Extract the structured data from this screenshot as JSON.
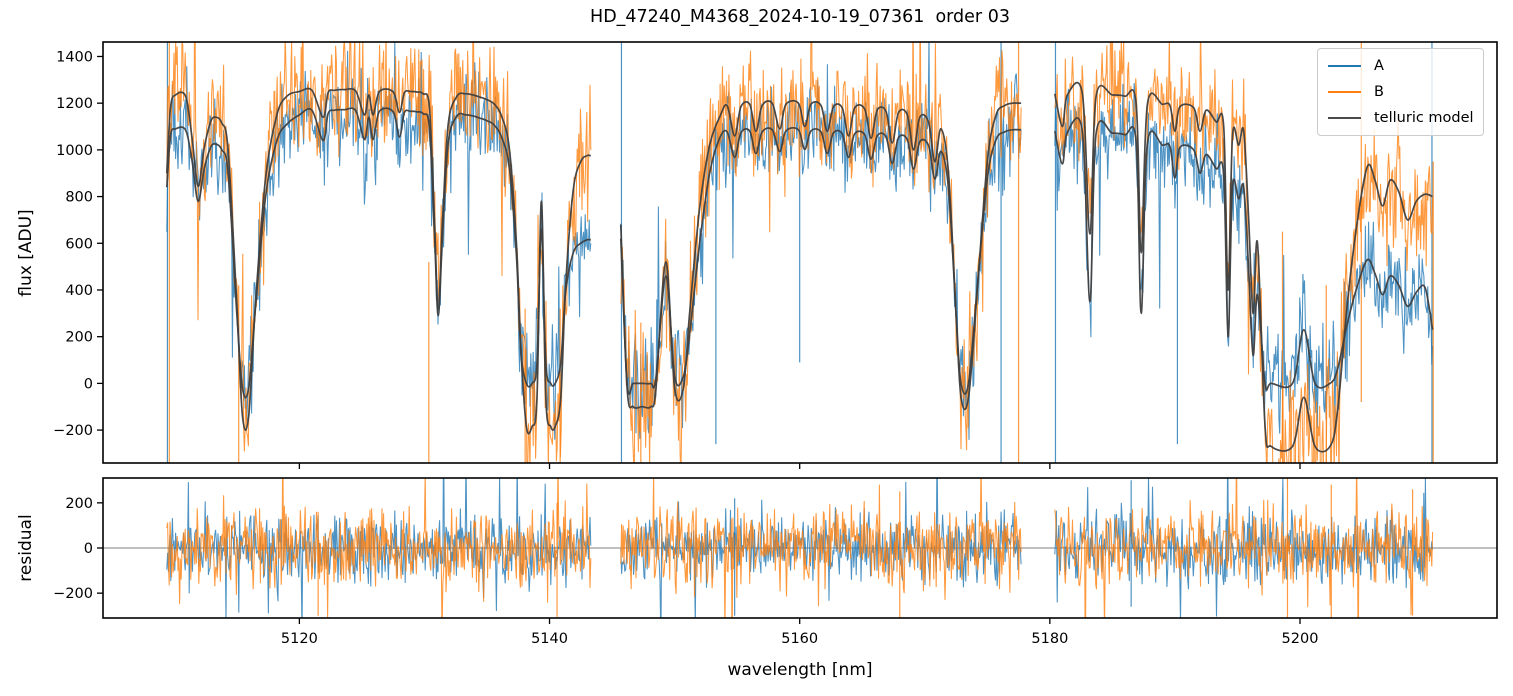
{
  "chart_data": {
    "type": "line",
    "title": "HD_47240_M4368_2024-10-19_07361  order 03",
    "xlabel": "wavelength [nm]",
    "xlim": [
      5104.3,
      5215.75
    ],
    "xticks": [
      5120,
      5140,
      5160,
      5180,
      5200
    ],
    "panels": [
      {
        "name": "flux",
        "ylabel": "flux [ADU]",
        "ylim": [
          -341,
          1462
        ],
        "yticks": [
          -200,
          0,
          200,
          400,
          600,
          800,
          1000,
          1200,
          1400
        ]
      },
      {
        "name": "residual",
        "ylabel": "residual",
        "ylim": [
          -310,
          310
        ],
        "yticks": [
          -200,
          0,
          200
        ],
        "zero_line": true
      }
    ],
    "legend": [
      {
        "label": "A",
        "color": "#1f77b4"
      },
      {
        "label": "B",
        "color": "#ff7f0e"
      },
      {
        "label": "telluric model",
        "color": "#4a4a4a"
      }
    ],
    "colors": {
      "A": "#1f77b4",
      "B": "#ff7f0e",
      "telluric": "#3f3f3f",
      "spine": "#000000",
      "zero_line": "#7f7f7f",
      "background": "#ffffff"
    },
    "wavelength_gaps": [
      [
        5143.3,
        5145.7
      ],
      [
        5177.7,
        5180.4
      ]
    ],
    "segments": [
      {
        "lambda": [
          5109.4,
          5109.7,
          5110.1,
          5110.9,
          5111.4,
          5111.9,
          5112.4,
          5112.9,
          5113.3,
          5113.8,
          5114.3,
          5115.0,
          5115.45,
          5115.95,
          5116.5,
          5117.3,
          5118.2,
          5119.0,
          5120.0,
          5121.0,
          5121.9,
          5122.3,
          5122.8,
          5123.6,
          5124.5,
          5125.2,
          5125.55,
          5125.9,
          5126.4,
          5127.5,
          5128.0,
          5128.4,
          5128.9,
          5129.4,
          5129.9,
          5130.4,
          5130.8,
          5131.1,
          5131.45,
          5131.9,
          5132.6,
          5133.3,
          5133.9,
          5134.5,
          5135.0,
          5135.6,
          5136.2,
          5136.8,
          5137.35,
          5137.7,
          5138.15,
          5138.6,
          5139.0,
          5139.35,
          5139.7,
          5140.1,
          5140.45,
          5140.9,
          5141.3,
          5141.9,
          5142.5,
          5143.0,
          5143.3
        ],
        "model_B": [
          900,
          1180,
          1235,
          1230,
          1060,
          845,
          1010,
          1120,
          1140,
          1115,
          1000,
          340,
          -140,
          -140,
          350,
          880,
          1150,
          1230,
          1250,
          1255,
          1140,
          1245,
          1255,
          1258,
          1252,
          1150,
          1235,
          1150,
          1250,
          1248,
          1160,
          1245,
          1250,
          1248,
          1240,
          1180,
          700,
          320,
          700,
          1110,
          1230,
          1240,
          1235,
          1225,
          1215,
          1195,
          1140,
          1000,
          600,
          160,
          -185,
          -185,
          -60,
          780,
          -60,
          -185,
          -185,
          -60,
          430,
          830,
          950,
          975,
          975
        ],
        "model_A": [
          840,
          1060,
          1090,
          1085,
          960,
          780,
          920,
          1010,
          1025,
          1000,
          900,
          300,
          -20,
          -20,
          330,
          800,
          1040,
          1110,
          1150,
          1170,
          1040,
          1155,
          1170,
          1172,
          1168,
          1045,
          1140,
          1045,
          1165,
          1163,
          1055,
          1160,
          1165,
          1163,
          1155,
          1095,
          640,
          290,
          640,
          1030,
          1145,
          1150,
          1145,
          1135,
          1125,
          1105,
          1050,
          920,
          550,
          140,
          0,
          0,
          90,
          660,
          90,
          0,
          0,
          90,
          400,
          560,
          600,
          615,
          615
        ]
      },
      {
        "lambda": [
          5145.7,
          5146.2,
          5146.7,
          5147.4,
          5148.1,
          5148.5,
          5149.3,
          5150.0,
          5150.7,
          5151.2,
          5152.0,
          5152.8,
          5153.6,
          5154.2,
          5154.8,
          5155.3,
          5156.0,
          5156.5,
          5157.0,
          5157.8,
          5158.4,
          5158.9,
          5159.9,
          5160.4,
          5160.9,
          5161.7,
          5162.2,
          5162.7,
          5163.4,
          5163.9,
          5164.4,
          5165.2,
          5165.7,
          5166.2,
          5166.9,
          5167.4,
          5167.9,
          5168.6,
          5169.1,
          5169.6,
          5170.3,
          5170.8,
          5171.3,
          5171.9,
          5172.5,
          5172.9,
          5173.5,
          5174.2,
          5175.0,
          5175.7,
          5176.4,
          5177.0,
          5177.7
        ],
        "model_B": [
          680,
          -20,
          -100,
          -100,
          -100,
          -30,
          520,
          -20,
          -20,
          300,
          750,
          1020,
          1140,
          1190,
          1060,
          1185,
          1195,
          1080,
          1190,
          1200,
          1090,
          1195,
          1200,
          1100,
          1195,
          1190,
          1080,
          1185,
          1180,
          1060,
          1180,
          1175,
          1050,
          1170,
          1165,
          1030,
          1160,
          1150,
          1000,
          1140,
          1120,
          950,
          1090,
          900,
          300,
          -60,
          -60,
          400,
          950,
          1150,
          1190,
          1200,
          1200
        ],
        "model_A": [
          620,
          0,
          0,
          0,
          0,
          20,
          460,
          30,
          30,
          210,
          600,
          900,
          1050,
          1077,
          968,
          1073,
          1081,
          985,
          1077,
          1086,
          993,
          1081,
          1086,
          1002,
          1081,
          1077,
          985,
          1073,
          1069,
          968,
          1069,
          1065,
          960,
          1060,
          1056,
          943,
          1052,
          1044,
          918,
          1035,
          1019,
          876,
          993,
          834,
          300,
          0,
          0,
          415,
          876,
          1044,
          1077,
          1086,
          1086
        ]
      },
      {
        "lambda": [
          5180.4,
          5181.0,
          5181.4,
          5182.6,
          5183.2,
          5183.7,
          5185.0,
          5186.0,
          5186.9,
          5187.3,
          5187.8,
          5189.0,
          5189.6,
          5190.0,
          5190.4,
          5191.5,
          5192.0,
          5192.5,
          5193.3,
          5193.9,
          5194.25,
          5194.6,
          5195.1,
          5195.5,
          5195.9,
          5196.25,
          5196.6,
          5197.2,
          5197.7,
          5199.4,
          5200.3,
          5201.2,
          5202.4,
          5203.0,
          5203.8,
          5204.6,
          5205.4,
          5206.0,
          5206.6,
          5207.2,
          5207.9,
          5208.6,
          5209.3,
          5210.0,
          5210.6
        ],
        "model_B": [
          1240,
          1100,
          1235,
          1240,
          640,
          1230,
          1235,
          1230,
          1200,
          560,
          1195,
          1195,
          1190,
          1080,
          1185,
          1180,
          1080,
          1170,
          1120,
          1100,
          400,
          1060,
          1020,
          1080,
          700,
          300,
          600,
          -180,
          -270,
          -270,
          -60,
          -270,
          -270,
          -120,
          350,
          700,
          930,
          870,
          760,
          870,
          820,
          700,
          780,
          810,
          800
        ],
        "model_A": [
          1080,
          940,
          1075,
          1078,
          350,
          1070,
          1072,
          1065,
          1035,
          300,
          1028,
          1020,
          1015,
          880,
          1010,
          1000,
          900,
          980,
          920,
          890,
          200,
          840,
          790,
          840,
          480,
          120,
          380,
          0,
          0,
          0,
          230,
          0,
          0,
          60,
          260,
          420,
          530,
          470,
          380,
          460,
          420,
          330,
          390,
          410,
          230
        ]
      }
    ],
    "noise": {
      "flux_amp_A": 95,
      "flux_amp_B": 120,
      "residual_amp_A": 75,
      "residual_amp_B": 85
    },
    "spikes_flux": [
      [
        5109.45,
        "A",
        -341,
        1462
      ],
      [
        5109.6,
        "B",
        -341,
        1462
      ],
      [
        5115.15,
        "B",
        -341,
        420
      ],
      [
        5130.35,
        "B",
        -341,
        520
      ],
      [
        5138.05,
        "B",
        -341,
        320
      ],
      [
        5140.85,
        "B",
        -341,
        320
      ],
      [
        5145.75,
        "A",
        -341,
        1462
      ],
      [
        5147.3,
        "B",
        -341,
        260
      ],
      [
        5153.3,
        "A",
        -260,
        1090
      ],
      [
        5160.0,
        "A",
        90,
        1100
      ],
      [
        5176.1,
        "A",
        -341,
        1462
      ],
      [
        5177.5,
        "B",
        -341,
        1462
      ],
      [
        5180.45,
        "A",
        -341,
        1462
      ],
      [
        5190.2,
        "A",
        -260,
        1080
      ],
      [
        5198.6,
        "B",
        -341,
        650
      ],
      [
        5202.1,
        "B",
        -341,
        420
      ],
      [
        5204.9,
        "B",
        -80,
        1462
      ],
      [
        5210.55,
        "A",
        -341,
        1462
      ],
      [
        5210.65,
        "B",
        -341,
        950
      ]
    ],
    "spikes_residual": [
      [
        5121.5,
        "B",
        -300,
        160
      ],
      [
        5140.6,
        "B",
        -305,
        200
      ],
      [
        5154.8,
        "A",
        -300,
        220
      ],
      [
        5168.0,
        "B",
        -310,
        250
      ],
      [
        5186.5,
        "A",
        -260,
        300
      ],
      [
        5199.0,
        "B",
        -310,
        310
      ],
      [
        5202.5,
        "B",
        -310,
        280
      ],
      [
        5209.0,
        "B",
        -300,
        260
      ]
    ]
  }
}
